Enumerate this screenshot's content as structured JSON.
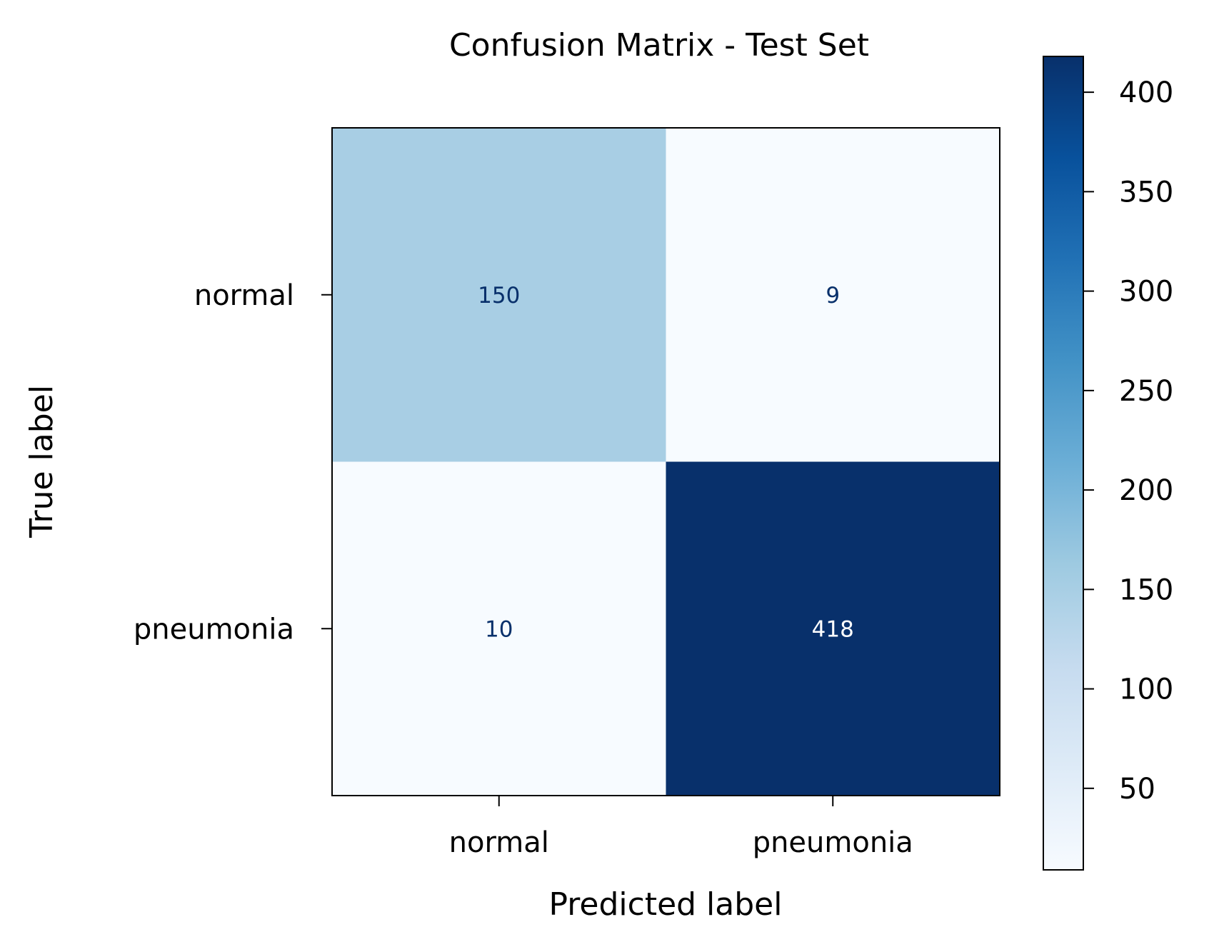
{
  "chart_data": {
    "type": "heatmap",
    "title": "Confusion Matrix - Test Set",
    "xlabel": "Predicted label",
    "ylabel": "True label",
    "x_categories": [
      "normal",
      "pneumonia"
    ],
    "y_categories": [
      "normal",
      "pneumonia"
    ],
    "values": [
      [
        150,
        9
      ],
      [
        10,
        418
      ]
    ],
    "colormap": "Blues",
    "colorbar": {
      "min": 9,
      "max": 418,
      "ticks": [
        50,
        100,
        150,
        200,
        250,
        300,
        350,
        400
      ]
    },
    "grid": false
  }
}
